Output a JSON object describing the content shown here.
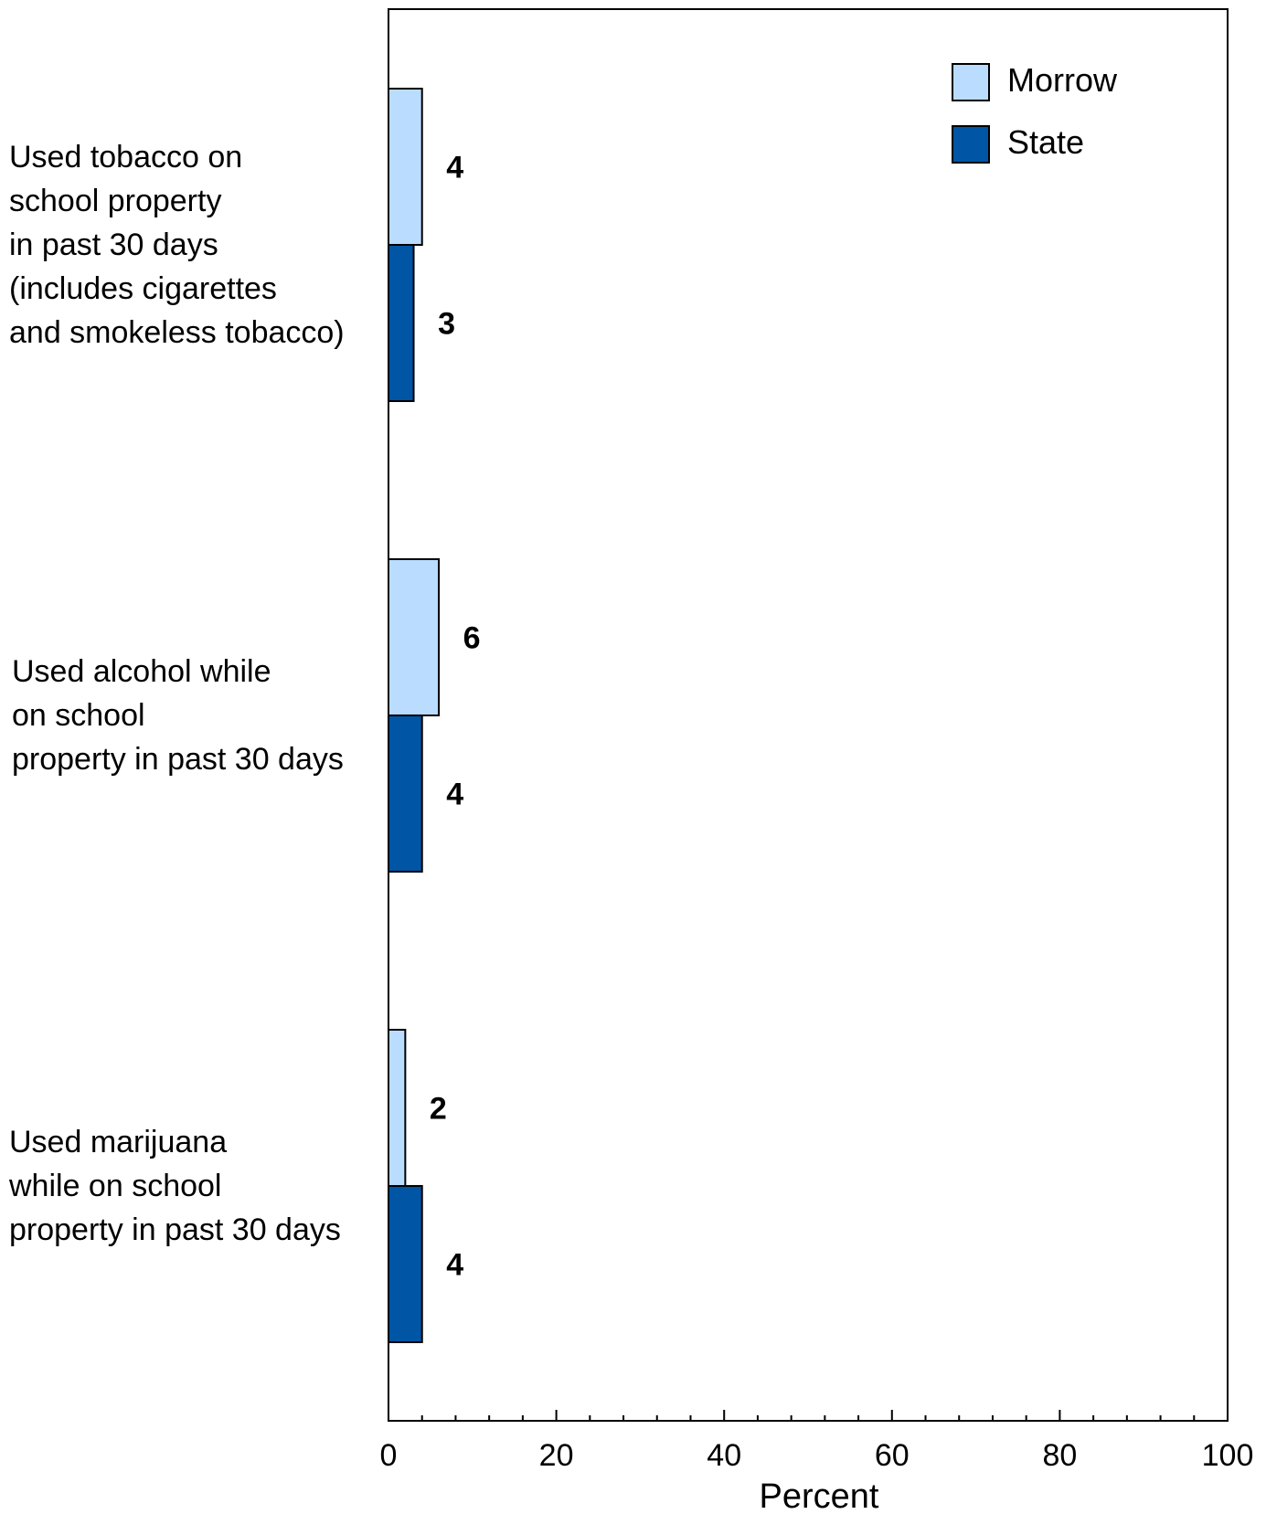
{
  "chart_data": {
    "type": "bar",
    "orientation": "horizontal",
    "categories": [
      [
        "Used tobacco on",
        "school property",
        "in past 30 days",
        "(includes cigarettes",
        "and smokeless tobacco)"
      ],
      [
        "Used alcohol while",
        "on school",
        "property in past 30 days"
      ],
      [
        "Used marijuana",
        "while on school",
        "property in past 30 days"
      ]
    ],
    "series": [
      {
        "name": "Morrow",
        "values": [
          4,
          6,
          2
        ],
        "color": "#b9dcff"
      },
      {
        "name": "State",
        "values": [
          3,
          4,
          4
        ],
        "color": "#0055a5"
      }
    ],
    "xlabel": "Percent",
    "xlim": [
      0,
      100
    ],
    "x_ticks": [
      0,
      20,
      40,
      60,
      80,
      100
    ],
    "legend_position": "top-right",
    "grid": false
  }
}
